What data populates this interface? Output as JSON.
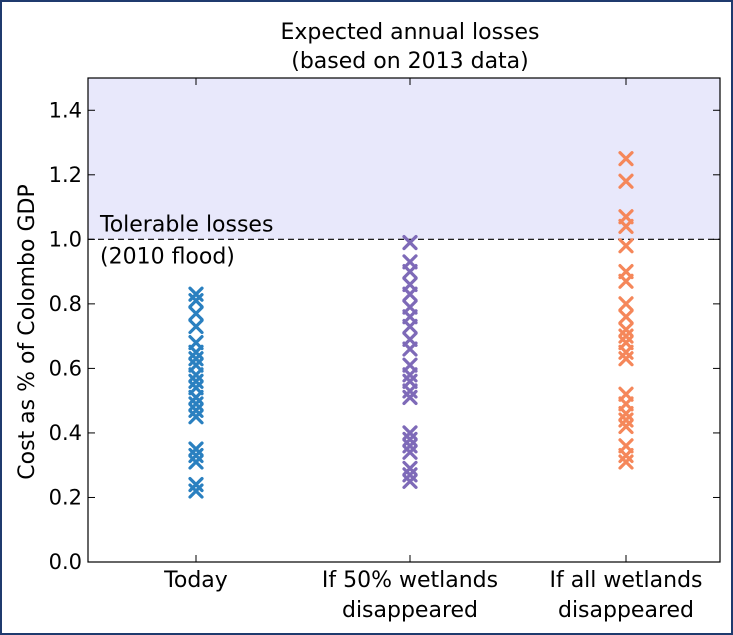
{
  "chart_data": {
    "type": "scatter",
    "title": [
      "Expected annual losses",
      "(based on 2013 data)"
    ],
    "xlabel": "",
    "ylabel": "Cost as % of Colombo GDP",
    "ylim": [
      0.0,
      1.5
    ],
    "yticks": [
      "0.0",
      "0.2",
      "0.4",
      "0.6",
      "0.8",
      "1.0",
      "1.2",
      "1.4"
    ],
    "categories": [
      "Today",
      "If 50% wetlands disappeared",
      "If all wetlands disappeared"
    ],
    "category_lines": [
      [
        "Today"
      ],
      [
        "If 50% wetlands",
        "disappeared"
      ],
      [
        "If all wetlands",
        "disappeared"
      ]
    ],
    "threshold": {
      "value": 1.0,
      "label": [
        "Tolerable losses",
        "(2010 flood)"
      ]
    },
    "shaded_region": {
      "from": 1.0,
      "to": 1.5,
      "color": "#e8e8fb"
    },
    "marker": "x",
    "grid": false,
    "series": [
      {
        "category": "Today",
        "color": "#2a80c0",
        "values": [
          0.83,
          0.81,
          0.77,
          0.73,
          0.68,
          0.65,
          0.63,
          0.61,
          0.58,
          0.56,
          0.54,
          0.51,
          0.49,
          0.47,
          0.45,
          0.35,
          0.33,
          0.31,
          0.24,
          0.22
        ]
      },
      {
        "category": "If 50% wetlands disappeared",
        "color": "#7e6ab8",
        "values": [
          0.99,
          0.93,
          0.9,
          0.86,
          0.83,
          0.79,
          0.76,
          0.73,
          0.69,
          0.66,
          0.61,
          0.58,
          0.56,
          0.53,
          0.51,
          0.4,
          0.38,
          0.36,
          0.34,
          0.29,
          0.27,
          0.25
        ]
      },
      {
        "category": "If all wetlands disappeared",
        "color": "#f5875a",
        "values": [
          1.25,
          1.18,
          1.07,
          1.04,
          0.98,
          0.9,
          0.87,
          0.8,
          0.76,
          0.72,
          0.7,
          0.68,
          0.65,
          0.63,
          0.52,
          0.49,
          0.46,
          0.44,
          0.42,
          0.36,
          0.33,
          0.31
        ]
      }
    ]
  }
}
